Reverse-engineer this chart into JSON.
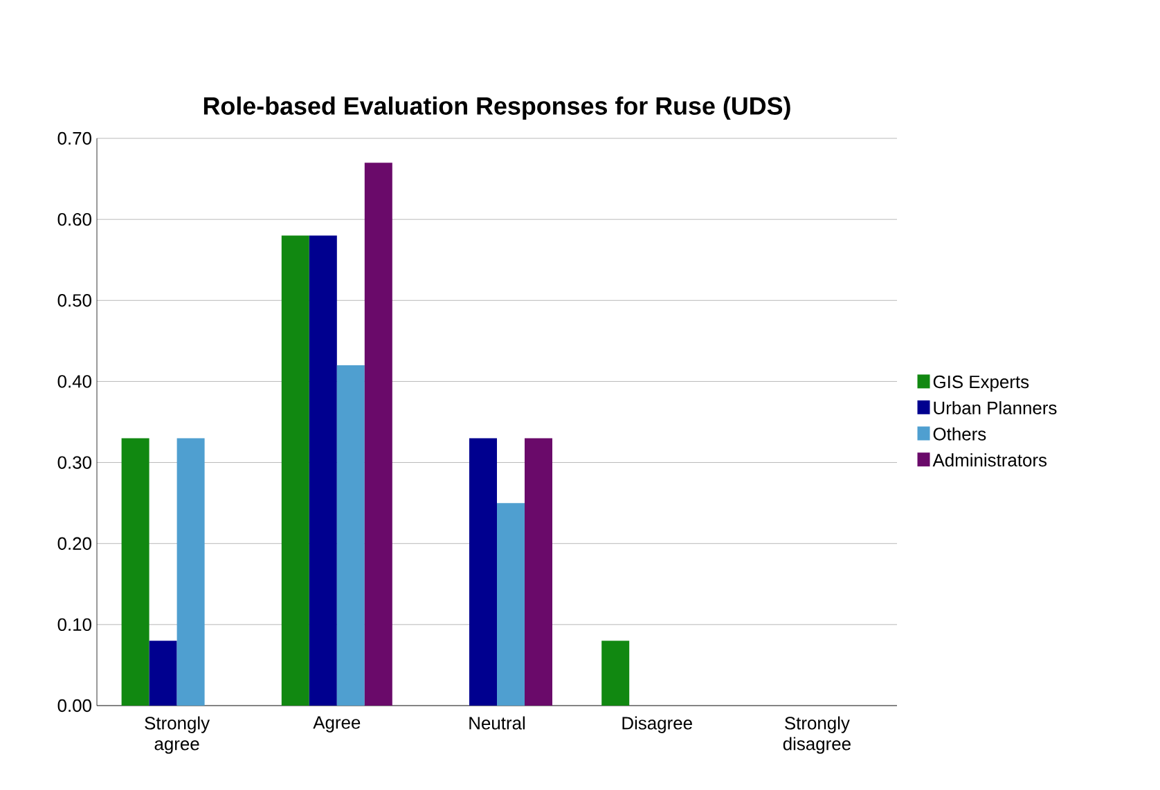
{
  "chart_data": {
    "type": "bar",
    "title": "Role-based Evaluation Responses for Ruse (UDS)",
    "categories": [
      "Strongly agree",
      "Agree",
      "Neutral",
      "Disagree",
      "Strongly disagree"
    ],
    "series": [
      {
        "name": "GIS Experts",
        "color": "#118811",
        "values": [
          0.33,
          0.58,
          0,
          0.08,
          0
        ]
      },
      {
        "name": "Urban Planners",
        "color": "#00008f",
        "values": [
          0.08,
          0.58,
          0.33,
          0,
          0
        ]
      },
      {
        "name": "Others",
        "color": "#4f9fd0",
        "values": [
          0.33,
          0.42,
          0.25,
          0,
          0
        ]
      },
      {
        "name": "Administrators",
        "color": "#6a0a6a",
        "values": [
          0,
          0.67,
          0.33,
          0,
          0
        ]
      }
    ],
    "ylim": [
      0,
      0.7
    ],
    "yticks": [
      {
        "value": 0,
        "label": "0.00"
      },
      {
        "value": 0.1,
        "label": "0.10"
      },
      {
        "value": 0.2,
        "label": "0.20"
      },
      {
        "value": 0.3,
        "label": "0.30"
      },
      {
        "value": 0.4,
        "label": "0.40"
      },
      {
        "value": 0.5,
        "label": "0.50"
      },
      {
        "value": 0.6,
        "label": "0.60"
      },
      {
        "value": 0.7,
        "label": "0.70"
      }
    ],
    "grid": "y",
    "legend": "right"
  }
}
